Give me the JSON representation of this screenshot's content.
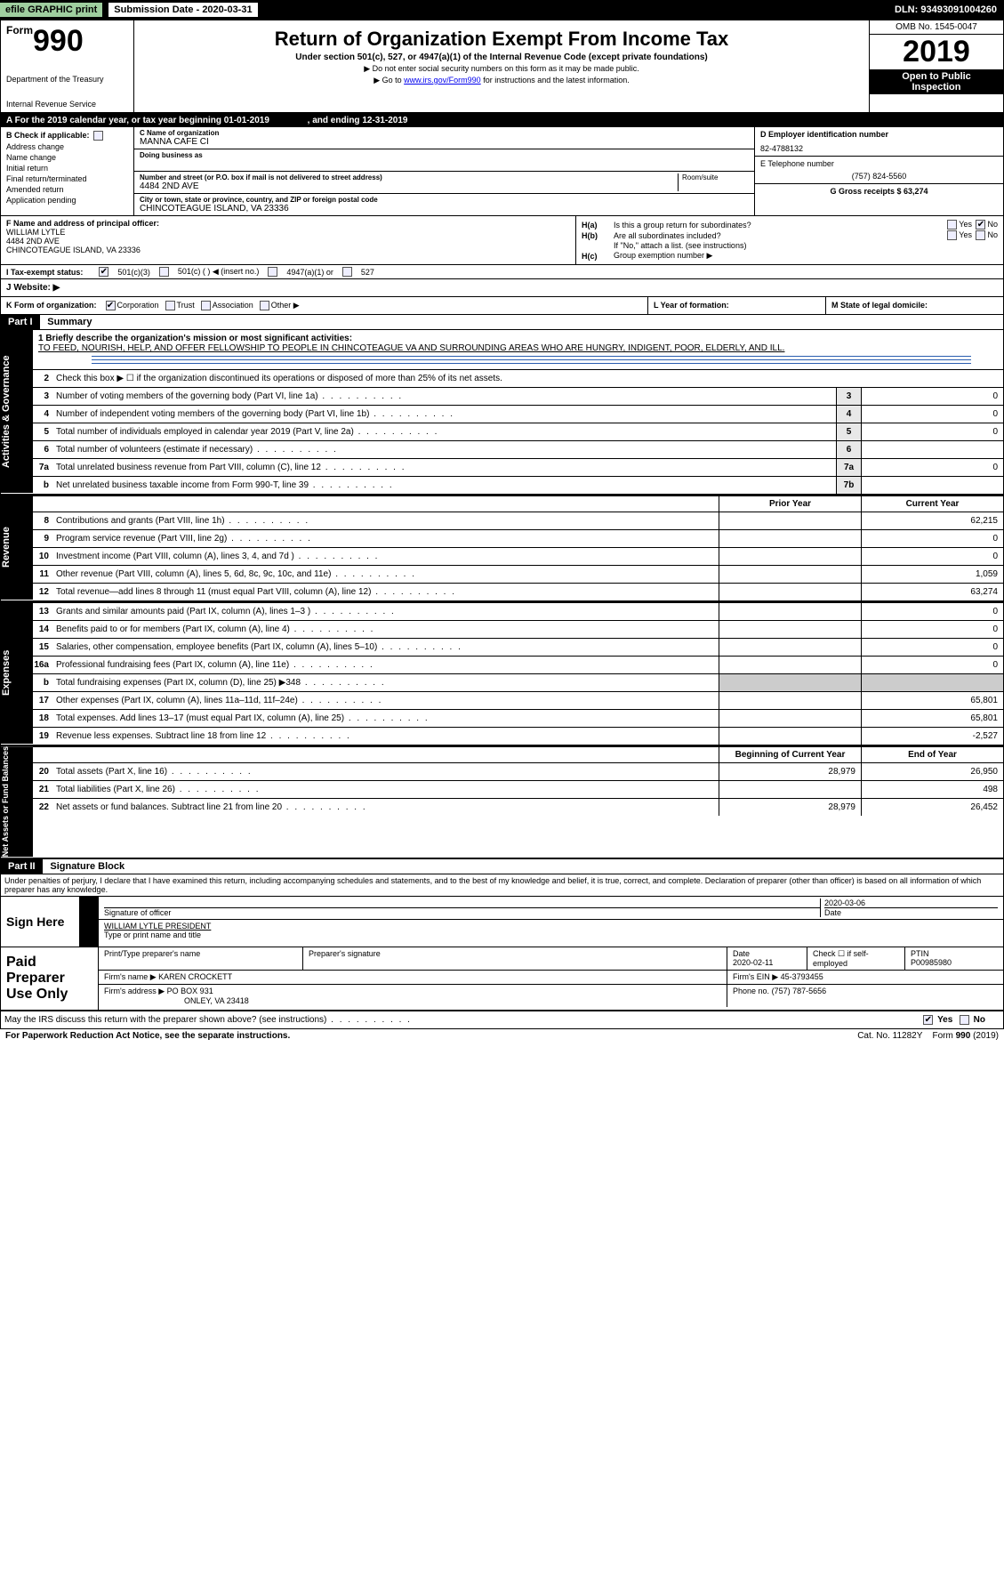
{
  "topbar": {
    "efile": "efile GRAPHIC print",
    "submission_label": "Submission Date - 2020-03-31",
    "dln": "DLN: 93493091004260"
  },
  "header": {
    "form_prefix": "Form",
    "form_number": "990",
    "dept": "Department of the Treasury",
    "irs": "Internal Revenue Service",
    "title": "Return of Organization Exempt From Income Tax",
    "subtitle": "Under section 501(c), 527, or 4947(a)(1) of the Internal Revenue Code (except private foundations)",
    "note1": "▶ Do not enter social security numbers on this form as it may be made public.",
    "note2_pre": "▶ Go to ",
    "note2_link": "www.irs.gov/Form990",
    "note2_post": " for instructions and the latest information.",
    "omb": "OMB No. 1545-0047",
    "year": "2019",
    "open_pub1": "Open to Public",
    "open_pub2": "Inspection"
  },
  "a_row": {
    "text_pre": "A   For the 2019 calendar year, or tax year beginning 01-01-2019",
    "text_mid": ", and ending 12-31-2019"
  },
  "section_b": {
    "label": "B Check if applicable:",
    "opts": [
      "Address change",
      "Name change",
      "Initial return",
      "Final return/terminated",
      "Amended return",
      "Application pending"
    ]
  },
  "section_c": {
    "name_label": "C Name of organization",
    "name": "MANNA CAFE CI",
    "dba_label": "Doing business as",
    "street_label": "Number and street (or P.O. box if mail is not delivered to street address)",
    "room_label": "Room/suite",
    "street": "4484 2ND AVE",
    "city_label": "City or town, state or province, country, and ZIP or foreign postal code",
    "city": "CHINCOTEAGUE ISLAND, VA  23336"
  },
  "section_d": {
    "label": "D Employer identification number",
    "value": "82-4788132"
  },
  "section_e": {
    "label": "E Telephone number",
    "value": "(757) 824-5560"
  },
  "section_g": {
    "label": "G Gross receipts $ 63,274"
  },
  "section_f": {
    "label": "F Name and address of principal officer:",
    "lines": [
      "WILLIAM LYTLE",
      "4484 2ND AVE",
      "CHINCOTEAGUE ISLAND, VA  23336"
    ]
  },
  "section_h": {
    "a_label": "H(a)",
    "a_text": "Is this a group return for subordinates?",
    "a_yes": "Yes",
    "a_no": "No",
    "b_label": "H(b)",
    "b_text": "Are all subordinates included?",
    "b_note": "If \"No,\" attach a list. (see instructions)",
    "c_label": "H(c)",
    "c_text": "Group exemption number ▶"
  },
  "section_i": {
    "label": "I     Tax-exempt status:",
    "opts": [
      "501(c)(3)",
      "501(c) (   ) ◀ (insert no.)",
      "4947(a)(1) or",
      "527"
    ]
  },
  "section_j": {
    "label": "J   Website: ▶"
  },
  "section_k": {
    "label": "K Form of organization:",
    "opts": [
      "Corporation",
      "Trust",
      "Association",
      "Other ▶"
    ]
  },
  "section_l": {
    "label": "L Year of formation:"
  },
  "section_m": {
    "label": "M State of legal domicile:"
  },
  "part1": {
    "hdr": "Part I",
    "title": "Summary",
    "line1_label": "1  Briefly describe the organization's mission or most significant activities:",
    "line1_text": "TO FEED, NOURISH, HELP, AND OFFER FELLOWSHIP TO PEOPLE IN CHINCOTEAGUE VA AND SURROUNDING AREAS WHO ARE HUNGRY, INDIGENT, POOR, ELDERLY, AND ILL.",
    "line2": "Check this box ▶ ☐ if the organization discontinued its operations or disposed of more than 25% of its net assets.",
    "side_activities": "Activities & Governance",
    "side_revenue": "Revenue",
    "side_expenses": "Expenses",
    "side_net": "Net Assets or Fund Balances",
    "prior_year": "Prior Year",
    "current_year": "Current Year",
    "beg_year": "Beginning of Current Year",
    "end_year": "End of Year",
    "rows_gov": [
      {
        "n": "3",
        "d": "Number of voting members of the governing body (Part VI, line 1a)",
        "box": "3",
        "v": "0"
      },
      {
        "n": "4",
        "d": "Number of independent voting members of the governing body (Part VI, line 1b)",
        "box": "4",
        "v": "0"
      },
      {
        "n": "5",
        "d": "Total number of individuals employed in calendar year 2019 (Part V, line 2a)",
        "box": "5",
        "v": "0"
      },
      {
        "n": "6",
        "d": "Total number of volunteers (estimate if necessary)",
        "box": "6",
        "v": ""
      },
      {
        "n": "7a",
        "d": "Total unrelated business revenue from Part VIII, column (C), line 12",
        "box": "7a",
        "v": "0"
      },
      {
        "n": "b",
        "d": "Net unrelated business taxable income from Form 990-T, line 39",
        "box": "7b",
        "v": ""
      }
    ],
    "rows_rev": [
      {
        "n": "8",
        "d": "Contributions and grants (Part VIII, line 1h)",
        "p": "",
        "c": "62,215"
      },
      {
        "n": "9",
        "d": "Program service revenue (Part VIII, line 2g)",
        "p": "",
        "c": "0"
      },
      {
        "n": "10",
        "d": "Investment income (Part VIII, column (A), lines 3, 4, and 7d )",
        "p": "",
        "c": "0"
      },
      {
        "n": "11",
        "d": "Other revenue (Part VIII, column (A), lines 5, 6d, 8c, 9c, 10c, and 11e)",
        "p": "",
        "c": "1,059"
      },
      {
        "n": "12",
        "d": "Total revenue—add lines 8 through 11 (must equal Part VIII, column (A), line 12)",
        "p": "",
        "c": "63,274"
      }
    ],
    "rows_exp": [
      {
        "n": "13",
        "d": "Grants and similar amounts paid (Part IX, column (A), lines 1–3 )",
        "p": "",
        "c": "0"
      },
      {
        "n": "14",
        "d": "Benefits paid to or for members (Part IX, column (A), line 4)",
        "p": "",
        "c": "0"
      },
      {
        "n": "15",
        "d": "Salaries, other compensation, employee benefits (Part IX, column (A), lines 5–10)",
        "p": "",
        "c": "0"
      },
      {
        "n": "16a",
        "d": "Professional fundraising fees (Part IX, column (A), line 11e)",
        "p": "",
        "c": "0"
      },
      {
        "n": "b",
        "d": "Total fundraising expenses (Part IX, column (D), line 25) ▶348",
        "p": "grey",
        "c": "grey"
      },
      {
        "n": "17",
        "d": "Other expenses (Part IX, column (A), lines 11a–11d, 11f–24e)",
        "p": "",
        "c": "65,801"
      },
      {
        "n": "18",
        "d": "Total expenses. Add lines 13–17 (must equal Part IX, column (A), line 25)",
        "p": "",
        "c": "65,801"
      },
      {
        "n": "19",
        "d": "Revenue less expenses. Subtract line 18 from line 12",
        "p": "",
        "c": "-2,527"
      }
    ],
    "rows_net": [
      {
        "n": "20",
        "d": "Total assets (Part X, line 16)",
        "p": "28,979",
        "c": "26,950"
      },
      {
        "n": "21",
        "d": "Total liabilities (Part X, line 26)",
        "p": "",
        "c": "498"
      },
      {
        "n": "22",
        "d": "Net assets or fund balances. Subtract line 21 from line 20",
        "p": "28,979",
        "c": "26,452"
      }
    ]
  },
  "part2": {
    "hdr": "Part II",
    "title": "Signature Block",
    "decl": "Under penalties of perjury, I declare that I have examined this return, including accompanying schedules and statements, and to the best of my knowledge and belief, it is true, correct, and complete. Declaration of preparer (other than officer) is based on all information of which preparer has any knowledge.",
    "sign_here": "Sign Here",
    "sig_officer": "Signature of officer",
    "sig_date_label": "Date",
    "sig_date": "2020-03-06",
    "name_title": "WILLIAM LYTLE  PRESIDENT",
    "name_title_label": "Type or print name and title",
    "paid_prep": "Paid Preparer Use Only",
    "p_name_label": "Print/Type preparer's name",
    "p_sig_label": "Preparer's signature",
    "p_date_label": "Date",
    "p_date": "2020-02-11",
    "p_check": "Check ☐ if self-employed",
    "ptin_label": "PTIN",
    "ptin": "P00985980",
    "firm_name_label": "Firm's name    ▶",
    "firm_name": "KAREN CROCKETT",
    "firm_ein_label": "Firm's EIN ▶",
    "firm_ein": "45-3793455",
    "firm_addr_label": "Firm's address ▶",
    "firm_addr1": "PO BOX 931",
    "firm_addr2": "ONLEY, VA  23418",
    "firm_phone_label": "Phone no.",
    "firm_phone": "(757) 787-5656",
    "discuss": "May the IRS discuss this return with the preparer shown above? (see instructions)",
    "yes": "Yes",
    "no": "No"
  },
  "footer": {
    "pra": "For Paperwork Reduction Act Notice, see the separate instructions.",
    "cat": "Cat. No. 11282Y",
    "form": "Form 990 (2019)"
  }
}
